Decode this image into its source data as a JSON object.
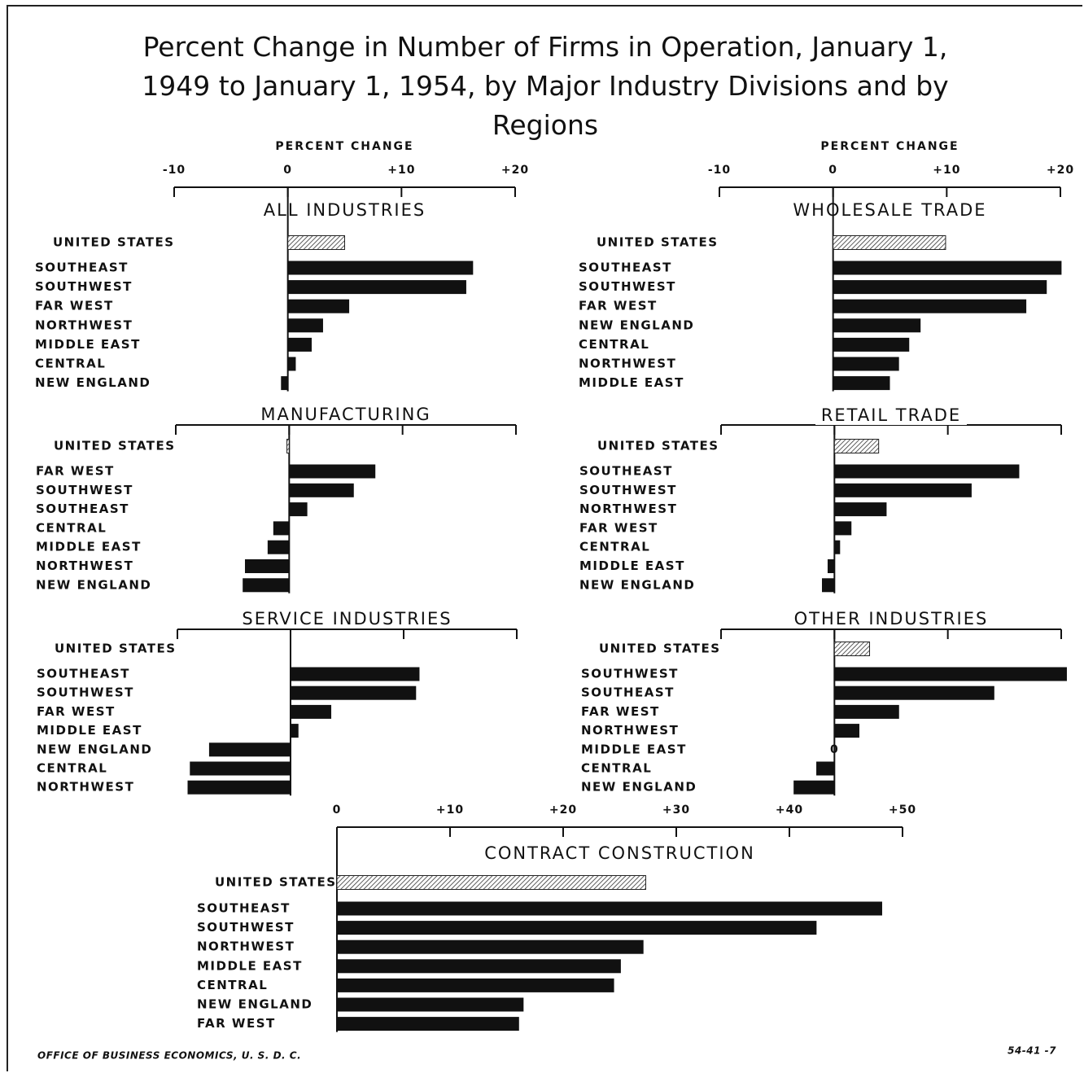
{
  "title": "Percent Change in Number of Firms in Operation, January 1, 1949 to January 1, 1954, by Major Industry Divisions and by Regions",
  "source": "OFFICE OF BUSINESS ECONOMICS, U. S. D. C.",
  "code": "54-41 -7",
  "chart_data": [
    {
      "type": "hbar",
      "title": "ALL INDUSTRIES",
      "axis_label": "PERCENT CHANGE",
      "categories": [
        "UNITED STATES",
        "SOUTHEAST",
        "SOUTHWEST",
        "FAR WEST",
        "NORTHWEST",
        "MIDDLE EAST",
        "CENTRAL",
        "NEW ENGLAND"
      ],
      "values": [
        5.0,
        16.3,
        15.7,
        5.4,
        3.1,
        2.1,
        0.7,
        -0.6
      ],
      "xlim": [
        -10,
        20
      ],
      "xticks": [
        -10,
        0,
        {
          "value": 10,
          "label": "+10"
        },
        {
          "value": 20,
          "label": "+20"
        }
      ],
      "tick_labels": true,
      "color": "#111111",
      "hatched_index": 0
    },
    {
      "type": "hbar",
      "title": "WHOLESALE TRADE",
      "axis_label": "PERCENT CHANGE",
      "categories": [
        "UNITED STATES",
        "SOUTHEAST",
        "SOUTHWEST",
        "FAR WEST",
        "NEW ENGLAND",
        "CENTRAL",
        "NORTHWEST",
        "MIDDLE EAST"
      ],
      "values": [
        9.9,
        20.1,
        18.8,
        17.0,
        7.7,
        6.7,
        5.8,
        5.0
      ],
      "xlim": [
        -10,
        20
      ],
      "xticks": [
        -10,
        0,
        {
          "value": 10,
          "label": "+10"
        },
        {
          "value": 20,
          "label": "+20"
        }
      ],
      "tick_labels": true,
      "color": "#111111",
      "hatched_index": 0
    },
    {
      "type": "hbar",
      "title": "MANUFACTURING",
      "categories": [
        "UNITED STATES",
        "FAR WEST",
        "SOUTHWEST",
        "SOUTHEAST",
        "CENTRAL",
        "MIDDLE EAST",
        "NORTHWEST",
        "NEW ENGLAND"
      ],
      "values": [
        -0.2,
        7.6,
        5.7,
        1.6,
        -1.4,
        -1.9,
        -3.9,
        -4.1
      ],
      "xlim": [
        -10,
        20
      ],
      "xticks": [
        -10,
        0,
        10,
        20
      ],
      "tick_labels": false,
      "color": "#111111",
      "hatched_index": 0
    },
    {
      "type": "hbar",
      "title": "RETAIL TRADE",
      "categories": [
        "UNITED STATES",
        "SOUTHEAST",
        "SOUTHWEST",
        "NORTHWEST",
        "FAR WEST",
        "CENTRAL",
        "MIDDLE EAST",
        "NEW ENGLAND"
      ],
      "values": [
        3.9,
        16.3,
        12.1,
        4.6,
        1.5,
        0.5,
        -0.6,
        -1.1
      ],
      "xlim": [
        -10,
        20
      ],
      "xticks": [
        -10,
        0,
        10,
        20
      ],
      "tick_labels": false,
      "color": "#111111",
      "hatched_index": 0
    },
    {
      "type": "hbar",
      "title": "SERVICE INDUSTRIES",
      "categories": [
        "UNITED STATES",
        "SOUTHEAST",
        "SOUTHWEST",
        "FAR WEST",
        "MIDDLE EAST",
        "NEW ENGLAND",
        "CENTRAL",
        "NORTHWEST"
      ],
      "values": [
        0,
        11.4,
        11.1,
        3.6,
        0.7,
        -7.2,
        -8.9,
        -9.1
      ],
      "xlim": [
        -10,
        20
      ],
      "xticks": [
        -10,
        0,
        10,
        20
      ],
      "tick_labels": false,
      "color": "#111111",
      "hatched_index": 0
    },
    {
      "type": "hbar",
      "title": "OTHER INDUSTRIES",
      "categories": [
        "UNITED STATES",
        "SOUTHWEST",
        "SOUTHEAST",
        "FAR WEST",
        "NORTHWEST",
        "MIDDLE EAST",
        "CENTRAL",
        "NEW ENGLAND"
      ],
      "values": [
        3.1,
        20.5,
        14.1,
        5.7,
        2.2,
        0,
        -1.6,
        -3.6
      ],
      "value_labels": [
        null,
        null,
        null,
        null,
        null,
        "0",
        null,
        null
      ],
      "xlim": [
        -10,
        20
      ],
      "xticks": [
        -10,
        0,
        10,
        20
      ],
      "tick_labels": false,
      "color": "#111111",
      "hatched_index": 0
    },
    {
      "type": "hbar",
      "title": "CONTRACT CONSTRUCTION",
      "categories": [
        "UNITED STATES",
        "SOUTHEAST",
        "SOUTHWEST",
        "NORTHWEST",
        "MIDDLE EAST",
        "CENTRAL",
        "NEW ENGLAND",
        "FAR WEST"
      ],
      "values": [
        27.3,
        48.2,
        42.4,
        27.1,
        25.1,
        24.5,
        16.5,
        16.1
      ],
      "xlim": [
        0,
        50
      ],
      "xticks": [
        0,
        {
          "value": 10,
          "label": "+10"
        },
        {
          "value": 20,
          "label": "+20"
        },
        {
          "value": 30,
          "label": "+30"
        },
        {
          "value": 40,
          "label": "+40"
        },
        {
          "value": 50,
          "label": "+50"
        }
      ],
      "tick_labels": true,
      "color": "#111111",
      "hatched_index": 0
    }
  ]
}
